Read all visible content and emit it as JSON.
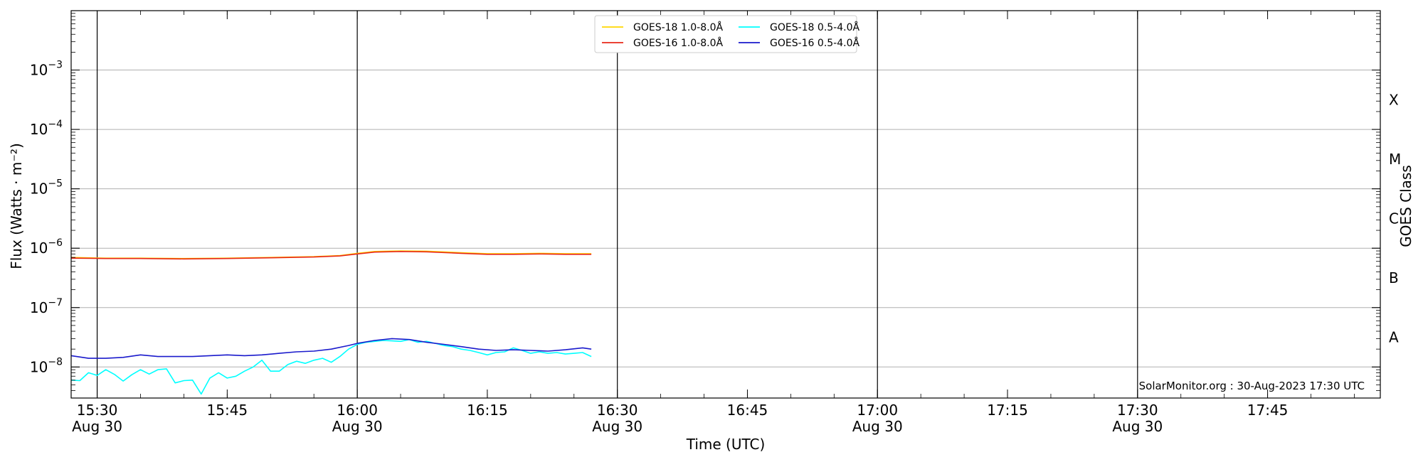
{
  "chart_data": {
    "type": "line",
    "xlabel": "Time (UTC)",
    "ylabel": "Flux (Watts · m⁻²)",
    "right_ylabel": "GOES Class",
    "y_scale": "log",
    "ylim": [
      3e-09,
      0.01
    ],
    "xlim": [
      "2023-08-30 15:27",
      "2023-08-30 17:58"
    ],
    "y_ticks": [
      {
        "value": 1e-08,
        "base": "10",
        "exp": "−8"
      },
      {
        "value": 1e-07,
        "base": "10",
        "exp": "−7"
      },
      {
        "value": 1e-06,
        "base": "10",
        "exp": "−6"
      },
      {
        "value": 1e-05,
        "base": "10",
        "exp": "−5"
      },
      {
        "value": 0.0001,
        "base": "10",
        "exp": "−4"
      },
      {
        "value": 0.001,
        "base": "10",
        "exp": "−3"
      }
    ],
    "x_ticks": [
      {
        "time": "15:30",
        "label": "15:30",
        "date": "Aug 30",
        "major": true
      },
      {
        "time": "15:45",
        "label": "15:45",
        "date": "",
        "major": false
      },
      {
        "time": "16:00",
        "label": "16:00",
        "date": "Aug 30",
        "major": true
      },
      {
        "time": "16:15",
        "label": "16:15",
        "date": "",
        "major": false
      },
      {
        "time": "16:30",
        "label": "16:30",
        "date": "Aug 30",
        "major": true
      },
      {
        "time": "16:45",
        "label": "16:45",
        "date": "",
        "major": false
      },
      {
        "time": "17:00",
        "label": "17:00",
        "date": "Aug 30",
        "major": true
      },
      {
        "time": "17:15",
        "label": "17:15",
        "date": "",
        "major": false
      },
      {
        "time": "17:30",
        "label": "17:30",
        "date": "Aug 30",
        "major": true
      },
      {
        "time": "17:45",
        "label": "17:45",
        "date": "",
        "major": false
      }
    ],
    "goes_classes": [
      {
        "label": "A",
        "value": 3.16e-08
      },
      {
        "label": "B",
        "value": 3.16e-07
      },
      {
        "label": "C",
        "value": 3.16e-06
      },
      {
        "label": "M",
        "value": 3.16e-05
      },
      {
        "label": "X",
        "value": 0.000316
      }
    ],
    "grid": true,
    "legend_position": "top-center",
    "legend": [
      {
        "name": "GOES-18 1.0-8.0Å",
        "color": "#ffd700"
      },
      {
        "name": "GOES-16 1.0-8.0Å",
        "color": "#e8281a"
      },
      {
        "name": "GOES-18 0.5-4.0Å",
        "color": "#00ffff"
      },
      {
        "name": "GOES-16 0.5-4.0Å",
        "color": "#1a1acc"
      }
    ],
    "series": [
      {
        "name": "GOES-18 1.0-8.0Å",
        "color": "#ffd700",
        "points": [
          [
            "15:27",
            7e-07
          ],
          [
            "15:31",
            6.8e-07
          ],
          [
            "15:35",
            6.8e-07
          ],
          [
            "15:40",
            6.7e-07
          ],
          [
            "15:45",
            6.8e-07
          ],
          [
            "15:50",
            7e-07
          ],
          [
            "15:55",
            7.2e-07
          ],
          [
            "15:58",
            7.5e-07
          ],
          [
            "16:00",
            8.2e-07
          ],
          [
            "16:02",
            8.8e-07
          ],
          [
            "16:05",
            9e-07
          ],
          [
            "16:08",
            8.9e-07
          ],
          [
            "16:12",
            8.4e-07
          ],
          [
            "16:15",
            8.1e-07
          ],
          [
            "16:18",
            8.1e-07
          ],
          [
            "16:21",
            8.2e-07
          ],
          [
            "16:24",
            8.1e-07
          ],
          [
            "16:27",
            8.1e-07
          ]
        ]
      },
      {
        "name": "GOES-16 1.0-8.0Å",
        "color": "#e8281a",
        "points": [
          [
            "15:27",
            6.8e-07
          ],
          [
            "15:31",
            6.7e-07
          ],
          [
            "15:35",
            6.7e-07
          ],
          [
            "15:40",
            6.6e-07
          ],
          [
            "15:45",
            6.7e-07
          ],
          [
            "15:50",
            6.9e-07
          ],
          [
            "15:55",
            7.1e-07
          ],
          [
            "15:58",
            7.4e-07
          ],
          [
            "16:00",
            8e-07
          ],
          [
            "16:02",
            8.6e-07
          ],
          [
            "16:05",
            8.8e-07
          ],
          [
            "16:08",
            8.7e-07
          ],
          [
            "16:12",
            8.2e-07
          ],
          [
            "16:15",
            7.9e-07
          ],
          [
            "16:18",
            7.9e-07
          ],
          [
            "16:21",
            8e-07
          ],
          [
            "16:24",
            7.9e-07
          ],
          [
            "16:27",
            7.9e-07
          ]
        ]
      },
      {
        "name": "GOES-18 0.5-4.0Å",
        "color": "#00ffff",
        "points": [
          [
            "15:27",
            6e-09
          ],
          [
            "15:28",
            5.9e-09
          ],
          [
            "15:29",
            8e-09
          ],
          [
            "15:30",
            7.2e-09
          ],
          [
            "15:31",
            9e-09
          ],
          [
            "15:32",
            7.5e-09
          ],
          [
            "15:33",
            5.8e-09
          ],
          [
            "15:34",
            7.4e-09
          ],
          [
            "15:35",
            9e-09
          ],
          [
            "15:36",
            7.6e-09
          ],
          [
            "15:37",
            9e-09
          ],
          [
            "15:38",
            9.3e-09
          ],
          [
            "15:39",
            5.4e-09
          ],
          [
            "15:40",
            5.9e-09
          ],
          [
            "15:41",
            6e-09
          ],
          [
            "15:42",
            3.5e-09
          ],
          [
            "15:43",
            6.5e-09
          ],
          [
            "15:44",
            8e-09
          ],
          [
            "15:45",
            6.5e-09
          ],
          [
            "15:46",
            7e-09
          ],
          [
            "15:47",
            8.5e-09
          ],
          [
            "15:48",
            1e-08
          ],
          [
            "15:49",
            1.3e-08
          ],
          [
            "15:50",
            8.5e-09
          ],
          [
            "15:51",
            8.5e-09
          ],
          [
            "15:52",
            1.1e-08
          ],
          [
            "15:53",
            1.25e-08
          ],
          [
            "15:54",
            1.15e-08
          ],
          [
            "15:55",
            1.3e-08
          ],
          [
            "15:56",
            1.4e-08
          ],
          [
            "15:57",
            1.2e-08
          ],
          [
            "15:58",
            1.5e-08
          ],
          [
            "15:59",
            2e-08
          ],
          [
            "16:00",
            2.4e-08
          ],
          [
            "16:01",
            2.6e-08
          ],
          [
            "16:02",
            2.7e-08
          ],
          [
            "16:03",
            2.8e-08
          ],
          [
            "16:04",
            2.75e-08
          ],
          [
            "16:05",
            2.7e-08
          ],
          [
            "16:06",
            2.9e-08
          ],
          [
            "16:07",
            2.6e-08
          ],
          [
            "16:08",
            2.7e-08
          ],
          [
            "16:09",
            2.5e-08
          ],
          [
            "16:10",
            2.3e-08
          ],
          [
            "16:11",
            2.2e-08
          ],
          [
            "16:12",
            2e-08
          ],
          [
            "16:13",
            1.9e-08
          ],
          [
            "16:14",
            1.75e-08
          ],
          [
            "16:15",
            1.6e-08
          ],
          [
            "16:16",
            1.75e-08
          ],
          [
            "16:17",
            1.8e-08
          ],
          [
            "16:18",
            2.1e-08
          ],
          [
            "16:19",
            1.9e-08
          ],
          [
            "16:20",
            1.7e-08
          ],
          [
            "16:21",
            1.8e-08
          ],
          [
            "16:22",
            1.7e-08
          ],
          [
            "16:23",
            1.75e-08
          ],
          [
            "16:24",
            1.65e-08
          ],
          [
            "16:25",
            1.7e-08
          ],
          [
            "16:26",
            1.75e-08
          ],
          [
            "16:27",
            1.5e-08
          ]
        ]
      },
      {
        "name": "GOES-16 0.5-4.0Å",
        "color": "#1a1acc",
        "points": [
          [
            "15:27",
            1.55e-08
          ],
          [
            "15:29",
            1.4e-08
          ],
          [
            "15:31",
            1.4e-08
          ],
          [
            "15:33",
            1.45e-08
          ],
          [
            "15:35",
            1.6e-08
          ],
          [
            "15:37",
            1.5e-08
          ],
          [
            "15:39",
            1.5e-08
          ],
          [
            "15:41",
            1.5e-08
          ],
          [
            "15:43",
            1.55e-08
          ],
          [
            "15:45",
            1.6e-08
          ],
          [
            "15:47",
            1.55e-08
          ],
          [
            "15:49",
            1.6e-08
          ],
          [
            "15:51",
            1.7e-08
          ],
          [
            "15:53",
            1.8e-08
          ],
          [
            "15:55",
            1.85e-08
          ],
          [
            "15:57",
            2e-08
          ],
          [
            "15:59",
            2.3e-08
          ],
          [
            "16:00",
            2.5e-08
          ],
          [
            "16:02",
            2.8e-08
          ],
          [
            "16:04",
            3e-08
          ],
          [
            "16:06",
            2.9e-08
          ],
          [
            "16:08",
            2.6e-08
          ],
          [
            "16:10",
            2.4e-08
          ],
          [
            "16:12",
            2.2e-08
          ],
          [
            "16:14",
            2e-08
          ],
          [
            "16:16",
            1.9e-08
          ],
          [
            "16:18",
            1.95e-08
          ],
          [
            "16:20",
            1.9e-08
          ],
          [
            "16:22",
            1.85e-08
          ],
          [
            "16:24",
            1.95e-08
          ],
          [
            "16:26",
            2.1e-08
          ],
          [
            "16:27",
            2e-08
          ]
        ]
      }
    ]
  },
  "credit": "SolarMonitor.org : 30-Aug-2023 17:30 UTC"
}
